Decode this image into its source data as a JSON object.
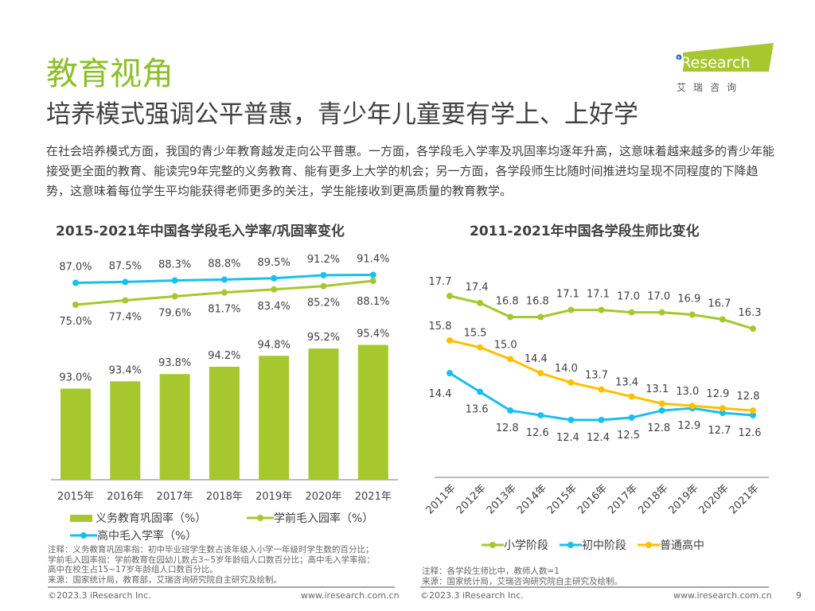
{
  "header": {
    "title": "教育视角",
    "subtitle": "培养模式强调公平普惠，青少年儿童要有学上、上好学",
    "body": "在社会培养模式方面，我国的青少年教育越发走向公平普惠。一方面，各学段毛入学率及巩固率均逐年升高，这意味着越来越多的青少年能接受更全面的教育、能读完9年完整的义务教育、能有更多上大学的机会；另一方面，各学段师生比随时间推进均呈现不同程度的下降趋势，这意味着每位学生平均能获得老师更多的关注，学生能接收到更高质量的教育教学。"
  },
  "logo": {
    "text": "iResearch",
    "sub": "艾 瑞 咨 询"
  },
  "colors": {
    "green": "#a6c82e",
    "blue": "#18c0ef",
    "yellow": "#ffc000",
    "title_green": "#8dbf2a"
  },
  "chart_data": [
    {
      "type": "bar",
      "title": "2015-2021年中国各学段毛入学率/巩固率变化",
      "categories": [
        "2015年",
        "2016年",
        "2017年",
        "2018年",
        "2019年",
        "2020年",
        "2021年"
      ],
      "series": [
        {
          "name": "义务教育巩固率（%）",
          "type": "bar",
          "values": [
            93.0,
            93.4,
            93.8,
            94.2,
            94.8,
            95.2,
            95.4
          ],
          "labels": [
            "93.0%",
            "93.4%",
            "93.8%",
            "94.2%",
            "94.8%",
            "95.2%",
            "95.4%"
          ]
        },
        {
          "name": "学前毛入园率（%）",
          "type": "line",
          "values": [
            75.0,
            77.4,
            79.6,
            81.7,
            83.4,
            85.2,
            88.1
          ],
          "labels": [
            "75.0%",
            "77.4%",
            "79.6%",
            "81.7%",
            "83.4%",
            "85.2%",
            "88.1%"
          ]
        },
        {
          "name": "高中毛入学率（%）",
          "type": "line",
          "values": [
            87.0,
            87.5,
            88.3,
            88.8,
            89.5,
            91.2,
            91.4
          ],
          "labels": [
            "87.0%",
            "87.5%",
            "88.3%",
            "88.8%",
            "89.5%",
            "91.2%",
            "91.4%"
          ]
        }
      ],
      "legend": "bottom",
      "note": [
        "注释：义务教育巩固率指：初中毕业班学生数占该年级入小学一年级时学生数的百分比；",
        "学前毛入园率指：学前教育在园幼儿数占3~5岁年龄组人口数百分比；高中毛入学率指：",
        "高中在校生占15~17岁年龄组人口数百分比。"
      ],
      "source": "来源：国家统计局，教育部，艾瑞咨询研究院自主研究及绘制。"
    },
    {
      "type": "line",
      "title": "2011-2021年中国各学段生师比变化",
      "categories": [
        "2011年",
        "2012年",
        "2013年",
        "2014年",
        "2015年",
        "2016年",
        "2017年",
        "2018年",
        "2019年",
        "2020年",
        "2021年"
      ],
      "series": [
        {
          "name": "小学阶段",
          "values": [
            17.7,
            17.4,
            16.8,
            16.8,
            17.1,
            17.1,
            17.0,
            17.0,
            16.9,
            16.7,
            16.3
          ]
        },
        {
          "name": "初中阶段",
          "values": [
            14.4,
            13.6,
            12.8,
            12.6,
            12.4,
            12.4,
            12.5,
            12.8,
            12.9,
            12.7,
            12.6
          ]
        },
        {
          "name": "普通高中",
          "values": [
            15.8,
            15.5,
            15.0,
            14.4,
            14.0,
            13.7,
            13.4,
            13.1,
            13.0,
            12.9,
            12.8
          ]
        }
      ],
      "legend": "bottom",
      "note": [
        "注释：各学段生师比中，教师人数=1"
      ],
      "source": "来源：国家统计局，艾瑞咨询研究院自主研究及绘制。"
    }
  ],
  "footer": {
    "copyright": "©2023.3 iResearch Inc.",
    "url": "www.iresearch.com.cn",
    "page": "9"
  }
}
